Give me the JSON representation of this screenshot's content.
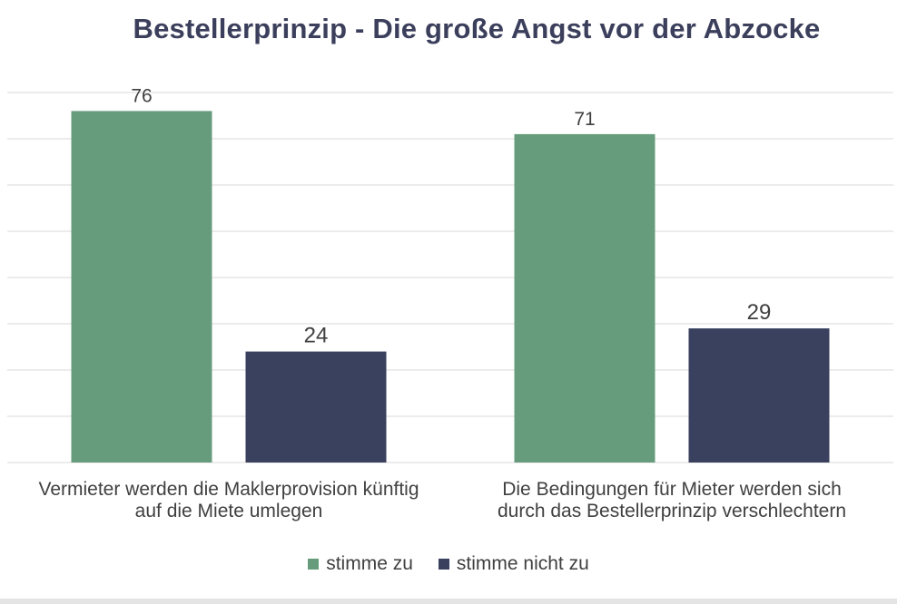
{
  "chart_data": {
    "type": "bar",
    "title": "Bestellerprinzip - Die große Angst vor der Abzocke",
    "categories": [
      [
        "Vermieter werden die Maklerprovision künftig",
        "auf die Miete umlegen"
      ],
      [
        "Die Bedingungen für Mieter werden sich",
        "durch das Bestellerprinzip verschlechtern"
      ]
    ],
    "series": [
      {
        "name": "stimme zu",
        "values": [
          76,
          71
        ],
        "color": "#669c7c"
      },
      {
        "name": "stimme nicht zu",
        "values": [
          24,
          29
        ],
        "color": "#39415e"
      }
    ],
    "ylim": [
      0,
      80
    ],
    "grid": true,
    "legend_position": "bottom"
  }
}
